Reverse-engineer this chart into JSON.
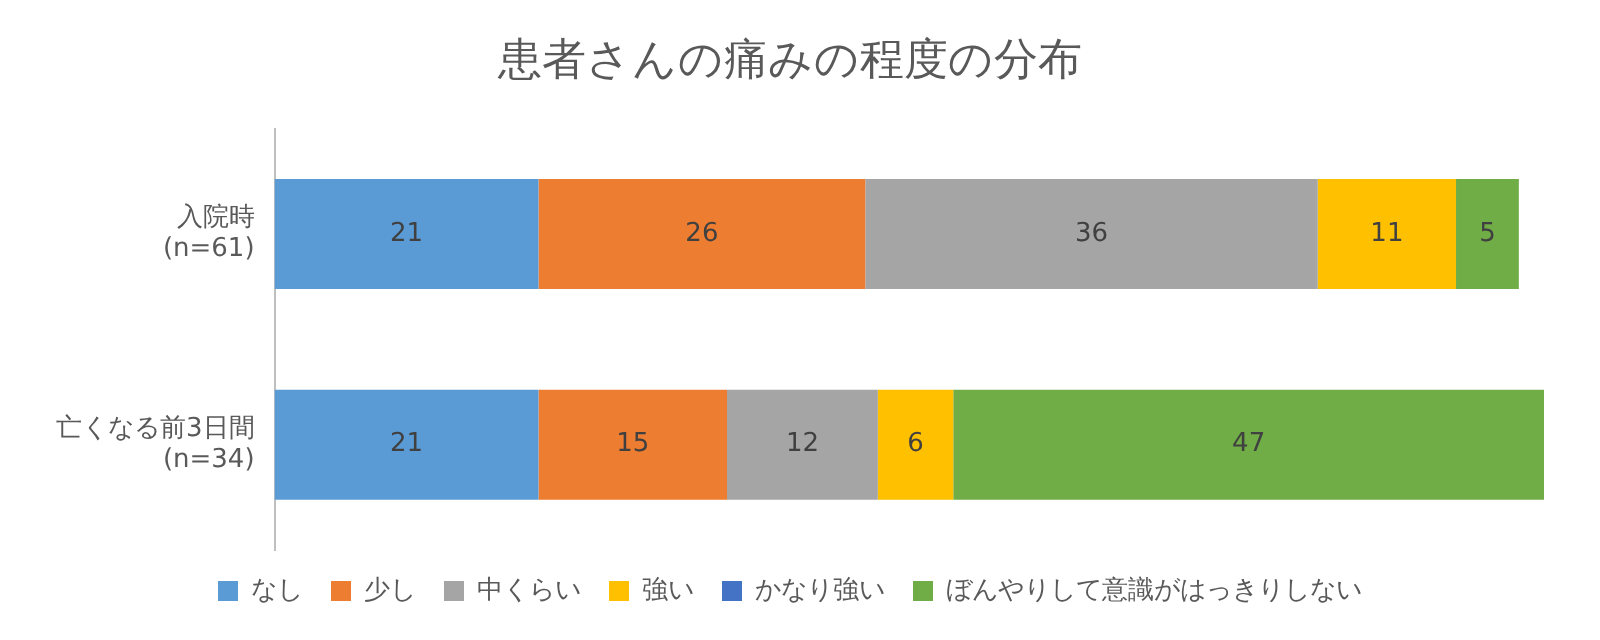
{
  "chart_data": {
    "type": "bar",
    "orientation": "horizontal",
    "stacked": true,
    "title": "患者さんの痛みの程度の分布",
    "categories": [
      "入院時\n(n=61)",
      "亡くなる前3日間\n(n=34)"
    ],
    "series": [
      {
        "name": "なし",
        "color": "#5b9bd5",
        "values": [
          21,
          21
        ]
      },
      {
        "name": "少し",
        "color": "#ed7d31",
        "values": [
          26,
          15
        ]
      },
      {
        "name": "中くらい",
        "color": "#a5a5a5",
        "values": [
          36,
          12
        ]
      },
      {
        "name": "強い",
        "color": "#ffc000",
        "values": [
          11,
          6
        ]
      },
      {
        "name": "かなり強い",
        "color": "#4472c4",
        "values": [
          null,
          null
        ]
      },
      {
        "name": "ぼんやりして意識がはっきりしない",
        "color": "#70ad47",
        "values": [
          5,
          47
        ]
      }
    ],
    "data_labels": true,
    "legend": "bottom",
    "grid": false,
    "tick_labels": "y"
  }
}
